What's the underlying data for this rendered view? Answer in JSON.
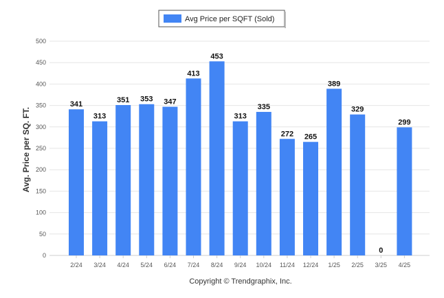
{
  "chart_data": {
    "type": "bar",
    "categories": [
      "2/24",
      "3/24",
      "4/24",
      "5/24",
      "6/24",
      "7/24",
      "8/24",
      "9/24",
      "10/24",
      "11/24",
      "12/24",
      "1/25",
      "2/25",
      "3/25",
      "4/25"
    ],
    "series": [
      {
        "name": "Avg Price per SQFT (Sold)",
        "values": [
          341,
          313,
          351,
          353,
          347,
          413,
          453,
          313,
          335,
          272,
          265,
          389,
          329,
          0,
          299
        ]
      }
    ],
    "ylabel": "Avg. Price per SQ. FT.",
    "xlabel": "",
    "ylim": [
      0,
      500
    ],
    "yticks": [
      0,
      50,
      100,
      150,
      200,
      250,
      300,
      350,
      400,
      450,
      500
    ],
    "grid": true,
    "legend": "top-center",
    "bar_color": "#4285f4"
  },
  "footer": {
    "copyright": "Copyright © Trendgraphix, Inc."
  }
}
